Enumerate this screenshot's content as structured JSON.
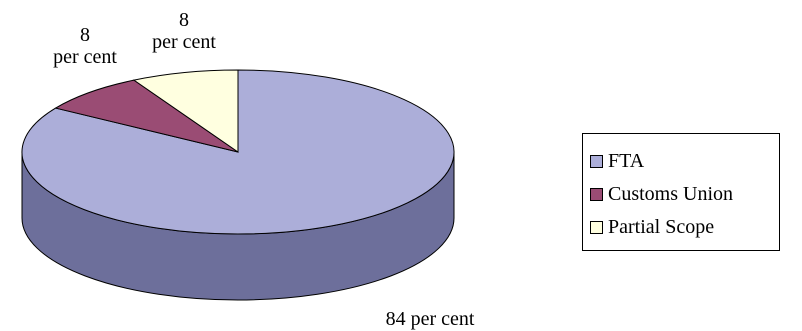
{
  "chart_data": {
    "type": "pie",
    "title": "",
    "three_d": true,
    "slices": [
      {
        "name": "FTA",
        "value": 84,
        "label_value": "84",
        "label_unit": "per cent",
        "color": "#acaed9",
        "side_color": "#6d6f9b"
      },
      {
        "name": "Customs Union",
        "value": 8,
        "label_value": "8",
        "label_unit": "per cent",
        "color": "#9a4c74",
        "side_color": "#6e3452"
      },
      {
        "name": "Partial Scope",
        "value": 8,
        "label_value": "8",
        "label_unit": "per cent",
        "color": "#ffffe0",
        "side_color": "#c9c9a8"
      }
    ],
    "legend_position": "right"
  }
}
